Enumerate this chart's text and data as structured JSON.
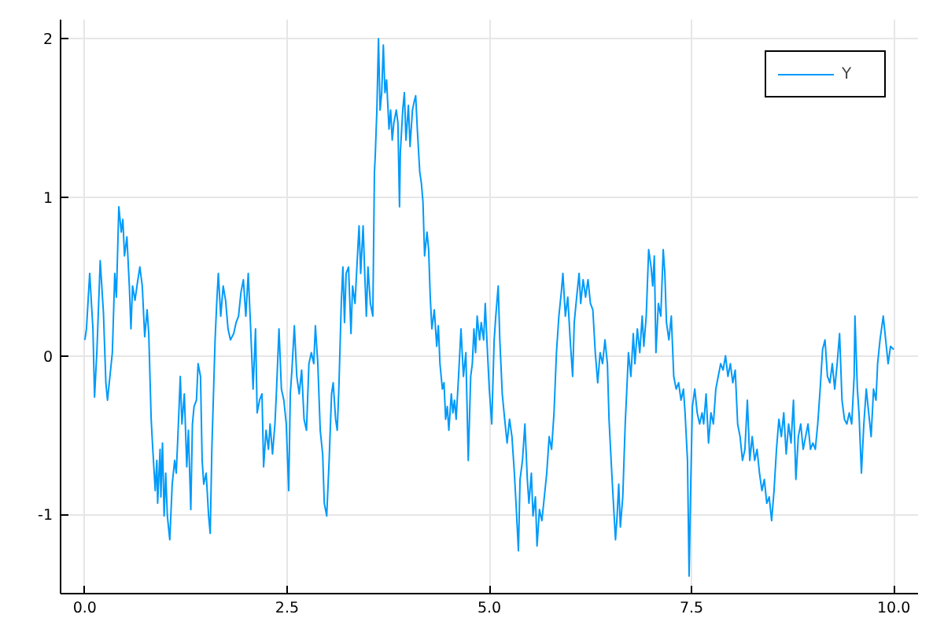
{
  "chart_data": {
    "type": "line",
    "x": [
      0.0,
      0.02,
      0.06,
      0.1,
      0.12,
      0.15,
      0.19,
      0.23,
      0.26,
      0.28,
      0.34,
      0.37,
      0.39,
      0.42,
      0.45,
      0.47,
      0.49,
      0.52,
      0.55,
      0.57,
      0.59,
      0.62,
      0.65,
      0.68,
      0.71,
      0.74,
      0.77,
      0.79,
      0.82,
      0.84,
      0.87,
      0.89,
      0.9,
      0.93,
      0.94,
      0.96,
      0.98,
      1.0,
      1.02,
      1.05,
      1.08,
      1.11,
      1.13,
      1.15,
      1.18,
      1.2,
      1.23,
      1.26,
      1.28,
      1.31,
      1.33,
      1.35,
      1.38,
      1.4,
      1.43,
      1.45,
      1.47,
      1.5,
      1.53,
      1.55,
      1.57,
      1.61,
      1.63,
      1.65,
      1.68,
      1.71,
      1.74,
      1.77,
      1.8,
      1.84,
      1.87,
      1.9,
      1.93,
      1.96,
      1.99,
      2.02,
      2.05,
      2.08,
      2.11,
      2.13,
      2.16,
      2.19,
      2.21,
      2.24,
      2.27,
      2.29,
      2.32,
      2.35,
      2.37,
      2.4,
      2.43,
      2.46,
      2.49,
      2.52,
      2.54,
      2.56,
      2.59,
      2.62,
      2.65,
      2.68,
      2.71,
      2.74,
      2.77,
      2.8,
      2.83,
      2.85,
      2.88,
      2.91,
      2.94,
      2.96,
      2.99,
      3.02,
      3.05,
      3.07,
      3.1,
      3.12,
      3.14,
      3.17,
      3.19,
      3.21,
      3.23,
      3.26,
      3.29,
      3.31,
      3.34,
      3.37,
      3.39,
      3.41,
      3.44,
      3.46,
      3.48,
      3.5,
      3.53,
      3.56,
      3.58,
      3.59,
      3.61,
      3.63,
      3.65,
      3.67,
      3.69,
      3.71,
      3.73,
      3.76,
      3.78,
      3.8,
      3.82,
      3.85,
      3.87,
      3.89,
      3.9,
      3.93,
      3.95,
      3.97,
      4.0,
      4.02,
      4.05,
      4.07,
      4.09,
      4.11,
      4.14,
      4.16,
      4.18,
      4.2,
      4.23,
      4.25,
      4.27,
      4.29,
      4.32,
      4.35,
      4.37,
      4.39,
      4.42,
      4.44,
      4.46,
      4.48,
      4.5,
      4.53,
      4.55,
      4.57,
      4.59,
      4.62,
      4.65,
      4.68,
      4.71,
      4.74,
      4.77,
      4.79,
      4.81,
      4.83,
      4.85,
      4.88,
      4.9,
      4.93,
      4.95,
      4.97,
      5.0,
      5.03,
      5.06,
      5.08,
      5.11,
      5.13,
      5.16,
      5.19,
      5.22,
      5.25,
      5.28,
      5.31,
      5.33,
      5.36,
      5.38,
      5.41,
      5.44,
      5.47,
      5.49,
      5.52,
      5.54,
      5.57,
      5.59,
      5.62,
      5.65,
      5.68,
      5.71,
      5.74,
      5.77,
      5.8,
      5.83,
      5.86,
      5.89,
      5.91,
      5.94,
      5.97,
      6.0,
      6.03,
      6.05,
      6.08,
      6.11,
      6.13,
      6.16,
      6.19,
      6.22,
      6.25,
      6.28,
      6.31,
      6.34,
      6.37,
      6.4,
      6.43,
      6.46,
      6.48,
      6.51,
      6.53,
      6.56,
      6.58,
      6.6,
      6.62,
      6.65,
      6.68,
      6.7,
      6.72,
      6.75,
      6.78,
      6.8,
      6.83,
      6.86,
      6.89,
      6.91,
      6.94,
      6.97,
      7.0,
      7.02,
      7.04,
      7.06,
      7.09,
      7.12,
      7.15,
      7.17,
      7.19,
      7.22,
      7.25,
      7.28,
      7.31,
      7.34,
      7.37,
      7.4,
      7.42,
      7.45,
      7.47,
      7.49,
      7.51,
      7.54,
      7.57,
      7.6,
      7.63,
      7.65,
      7.68,
      7.71,
      7.74,
      7.77,
      7.8,
      7.83,
      7.86,
      7.89,
      7.92,
      7.95,
      7.98,
      8.01,
      8.04,
      8.07,
      8.1,
      8.13,
      8.16,
      8.19,
      8.22,
      8.25,
      8.28,
      8.31,
      8.34,
      8.37,
      8.4,
      8.43,
      8.46,
      8.49,
      8.52,
      8.55,
      8.58,
      8.61,
      8.64,
      8.67,
      8.7,
      8.73,
      8.76,
      8.79,
      8.82,
      8.85,
      8.88,
      8.91,
      8.94,
      8.97,
      9.0,
      9.03,
      9.06,
      9.09,
      9.12,
      9.15,
      9.18,
      9.21,
      9.24,
      9.27,
      9.3,
      9.33,
      9.36,
      9.39,
      9.42,
      9.45,
      9.48,
      9.51,
      9.52,
      9.55,
      9.57,
      9.6,
      9.63,
      9.66,
      9.69,
      9.72,
      9.75,
      9.78,
      9.8,
      9.83,
      9.87,
      9.9,
      9.93,
      9.96,
      10.0
    ],
    "series": [
      {
        "name": "Y",
        "color": "#009af9",
        "values": [
          0.1,
          0.17,
          0.52,
          0.17,
          -0.26,
          0.04,
          0.6,
          0.27,
          -0.17,
          -0.28,
          0.02,
          0.52,
          0.37,
          0.94,
          0.78,
          0.86,
          0.63,
          0.75,
          0.44,
          0.17,
          0.44,
          0.35,
          0.46,
          0.56,
          0.44,
          0.12,
          0.29,
          0.14,
          -0.4,
          -0.59,
          -0.85,
          -0.66,
          -0.93,
          -0.59,
          -0.89,
          -0.55,
          -1.01,
          -0.74,
          -1.01,
          -1.16,
          -0.81,
          -0.66,
          -0.74,
          -0.51,
          -0.13,
          -0.43,
          -0.24,
          -0.7,
          -0.47,
          -0.97,
          -0.43,
          -0.32,
          -0.28,
          -0.05,
          -0.13,
          -0.66,
          -0.81,
          -0.74,
          -1.01,
          -1.12,
          -0.59,
          0.1,
          0.33,
          0.52,
          0.25,
          0.44,
          0.35,
          0.17,
          0.1,
          0.14,
          0.21,
          0.25,
          0.4,
          0.48,
          0.25,
          0.52,
          0.17,
          -0.21,
          0.17,
          -0.36,
          -0.28,
          -0.24,
          -0.7,
          -0.47,
          -0.59,
          -0.43,
          -0.62,
          -0.43,
          -0.21,
          0.17,
          -0.21,
          -0.28,
          -0.43,
          -0.85,
          -0.24,
          -0.09,
          0.19,
          -0.13,
          -0.24,
          -0.09,
          -0.4,
          -0.47,
          -0.05,
          0.02,
          -0.05,
          0.19,
          -0.05,
          -0.47,
          -0.62,
          -0.93,
          -1.01,
          -0.66,
          -0.24,
          -0.17,
          -0.4,
          -0.47,
          -0.21,
          0.33,
          0.56,
          0.21,
          0.52,
          0.56,
          0.14,
          0.44,
          0.33,
          0.63,
          0.82,
          0.52,
          0.82,
          0.52,
          0.25,
          0.56,
          0.33,
          0.25,
          1.16,
          1.26,
          1.55,
          2.0,
          1.55,
          1.66,
          1.96,
          1.66,
          1.74,
          1.43,
          1.55,
          1.36,
          1.47,
          1.55,
          1.47,
          0.94,
          1.28,
          1.55,
          1.66,
          1.36,
          1.58,
          1.32,
          1.55,
          1.6,
          1.64,
          1.43,
          1.16,
          1.09,
          0.97,
          0.63,
          0.78,
          0.67,
          0.37,
          0.17,
          0.29,
          0.06,
          0.19,
          -0.05,
          -0.21,
          -0.17,
          -0.4,
          -0.32,
          -0.47,
          -0.24,
          -0.36,
          -0.28,
          -0.4,
          -0.13,
          0.17,
          -0.13,
          0.02,
          -0.66,
          -0.13,
          -0.05,
          0.17,
          0.02,
          0.25,
          0.1,
          0.21,
          0.1,
          0.33,
          0.1,
          -0.21,
          -0.43,
          0.1,
          0.25,
          0.44,
          0.1,
          -0.24,
          -0.4,
          -0.55,
          -0.4,
          -0.51,
          -0.74,
          -0.93,
          -1.23,
          -0.78,
          -0.66,
          -0.43,
          -0.78,
          -0.93,
          -0.74,
          -1.01,
          -0.89,
          -1.2,
          -0.97,
          -1.04,
          -0.89,
          -0.74,
          -0.51,
          -0.59,
          -0.36,
          0.02,
          0.25,
          0.4,
          0.52,
          0.25,
          0.37,
          0.1,
          -0.13,
          0.21,
          0.37,
          0.52,
          0.33,
          0.48,
          0.37,
          0.48,
          0.33,
          0.29,
          0.02,
          -0.17,
          0.02,
          -0.05,
          0.1,
          -0.05,
          -0.4,
          -0.7,
          -0.89,
          -1.16,
          -1.01,
          -0.81,
          -1.08,
          -0.89,
          -0.43,
          -0.21,
          0.02,
          -0.13,
          0.14,
          -0.05,
          0.17,
          0.02,
          0.25,
          0.06,
          0.25,
          0.67,
          0.56,
          0.44,
          0.63,
          0.02,
          0.33,
          0.25,
          0.67,
          0.52,
          0.21,
          0.1,
          0.25,
          -0.13,
          -0.21,
          -0.17,
          -0.28,
          -0.21,
          -0.36,
          -0.66,
          -1.39,
          -0.81,
          -0.32,
          -0.21,
          -0.36,
          -0.43,
          -0.36,
          -0.43,
          -0.24,
          -0.55,
          -0.36,
          -0.43,
          -0.21,
          -0.13,
          -0.05,
          -0.09,
          0.0,
          -0.13,
          -0.05,
          -0.17,
          -0.09,
          -0.43,
          -0.51,
          -0.66,
          -0.59,
          -0.28,
          -0.66,
          -0.51,
          -0.66,
          -0.59,
          -0.74,
          -0.85,
          -0.78,
          -0.93,
          -0.89,
          -1.04,
          -0.85,
          -0.59,
          -0.4,
          -0.51,
          -0.36,
          -0.62,
          -0.43,
          -0.55,
          -0.28,
          -0.78,
          -0.51,
          -0.43,
          -0.59,
          -0.51,
          -0.43,
          -0.59,
          -0.55,
          -0.59,
          -0.43,
          -0.21,
          0.04,
          0.1,
          -0.13,
          -0.17,
          -0.05,
          -0.21,
          -0.05,
          0.14,
          -0.28,
          -0.4,
          -0.43,
          -0.36,
          -0.43,
          -0.13,
          0.25,
          -0.21,
          -0.36,
          -0.74,
          -0.43,
          -0.21,
          -0.36,
          -0.51,
          -0.21,
          -0.28,
          -0.05,
          0.1,
          0.25,
          0.1,
          -0.05,
          0.06,
          0.04
        ]
      }
    ],
    "xlim": [
      -0.3,
      10.3
    ],
    "ylim": [
      -1.5,
      2.12
    ],
    "xticks": [
      {
        "value": 0,
        "label": "0.0"
      },
      2.5,
      {
        "value": 5,
        "label": "5.0"
      },
      7.5,
      {
        "value": 10,
        "label": "10.0"
      }
    ],
    "yticks": [
      -1,
      0,
      1,
      2
    ],
    "grid": true,
    "legend": "top right"
  }
}
